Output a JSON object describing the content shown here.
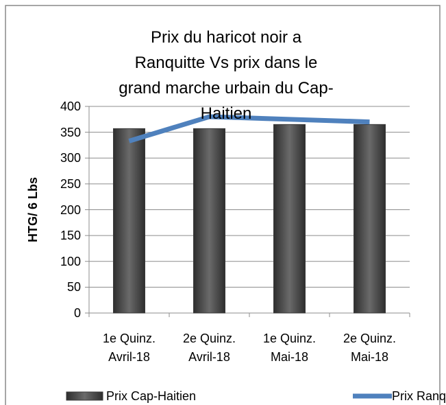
{
  "chart_data": {
    "type": "bar",
    "title": "Prix du haricot noir a Ranquitte Vs prix dans le grand marche urbain du Cap-Haitien",
    "y_label": "HTG/ 6 Lbs",
    "categories": [
      "1e Quinz. Avril-18",
      "2e Quinz. Avril-18",
      "1e Quinz. Mai-18",
      "2e Quinz. Mai-18"
    ],
    "series": [
      {
        "name": "Prix Cap-Haitien",
        "type": "bar",
        "color": "#4a4a4a",
        "values": [
          357,
          357,
          365,
          365
        ]
      },
      {
        "name": "Prix Ranquitte",
        "type": "line",
        "color": "#4f81bd",
        "values": [
          333,
          380,
          375,
          370
        ]
      }
    ],
    "ylim": [
      0,
      400
    ],
    "yticks": [
      0,
      50,
      100,
      150,
      200,
      250,
      300,
      350,
      400
    ],
    "grid": true,
    "legend": "bottom"
  }
}
